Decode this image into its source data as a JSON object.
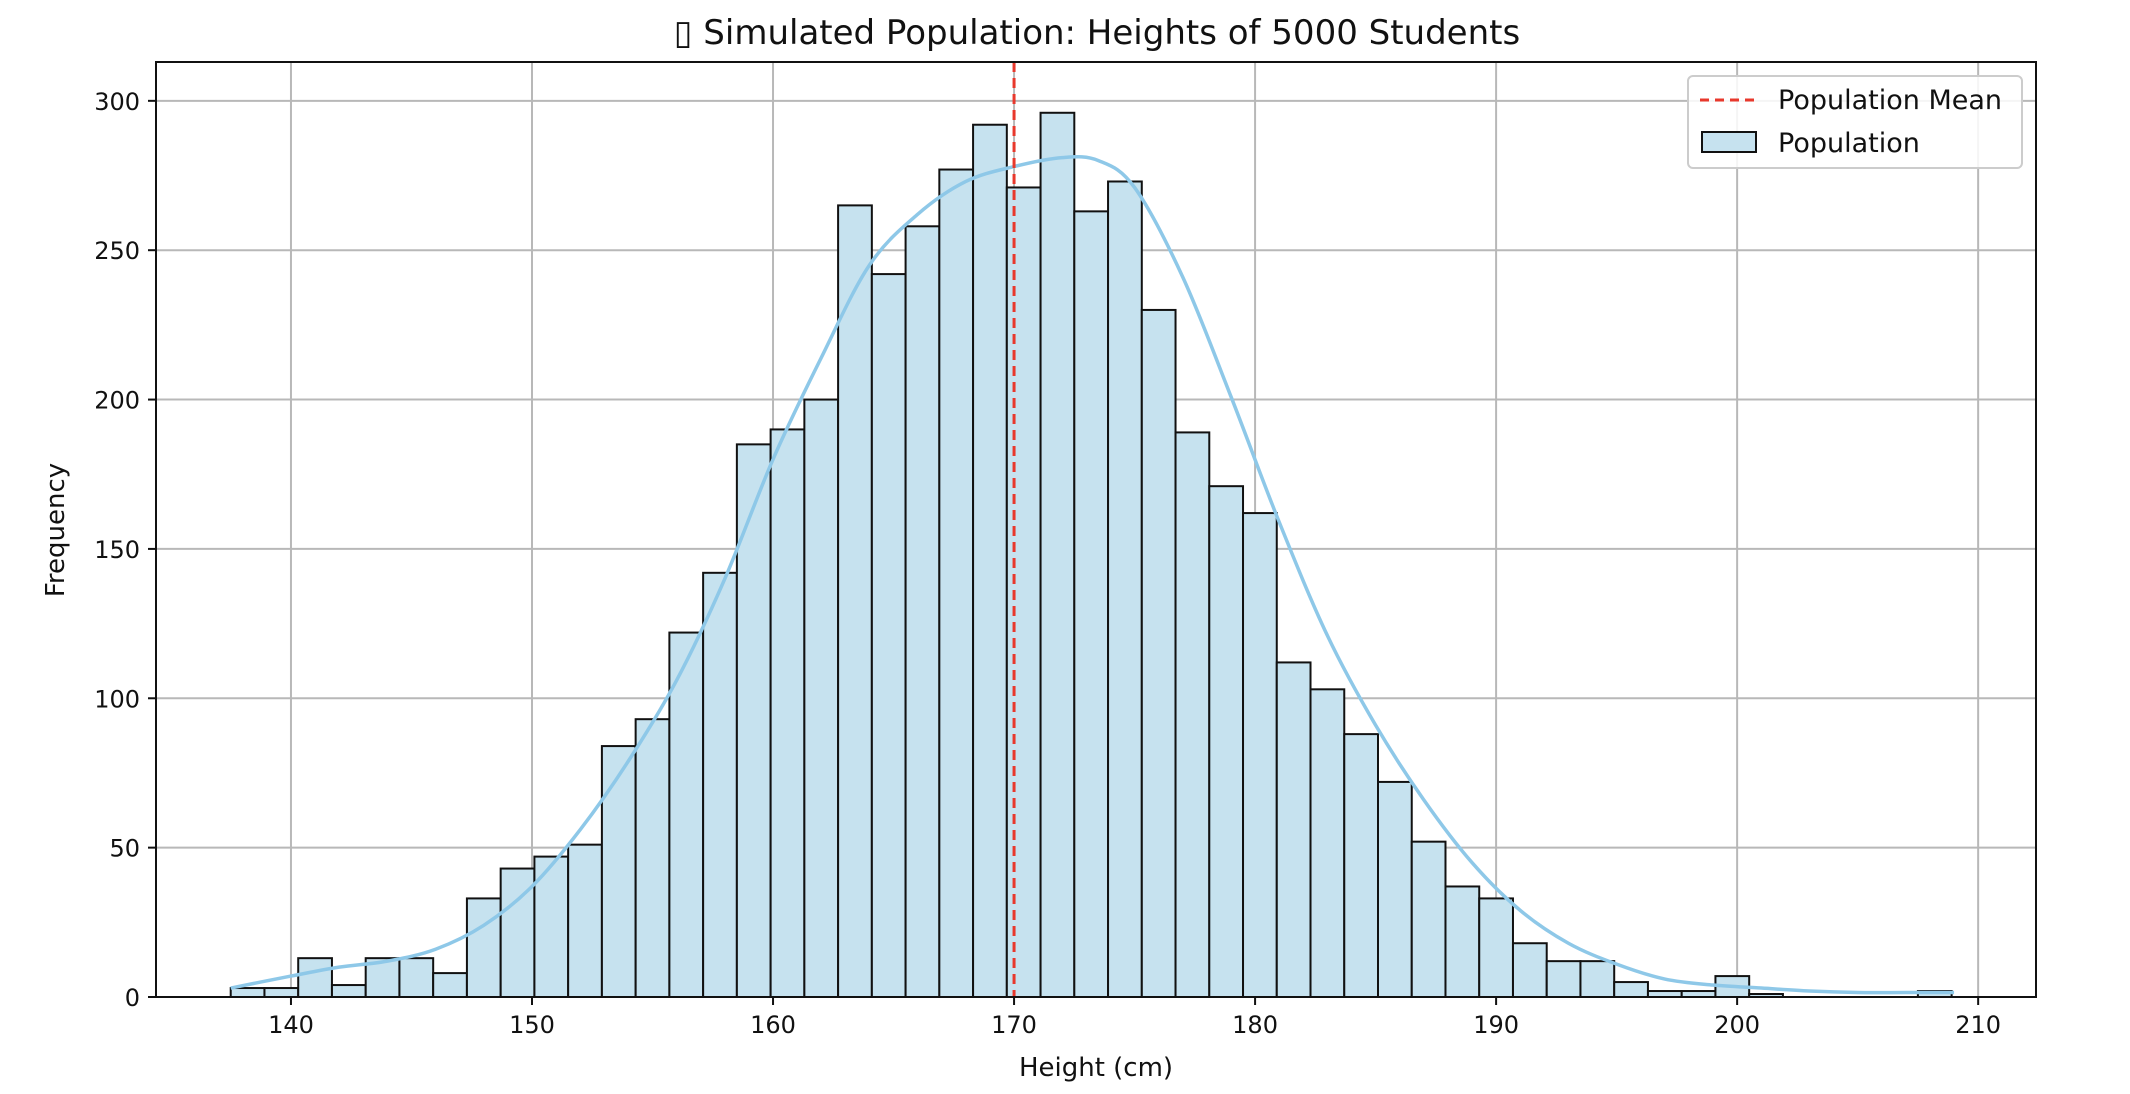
{
  "chart_data": {
    "type": "bar",
    "title": "▯ Simulated Population: Heights of 5000 Students",
    "xlabel": "Height (cm)",
    "ylabel": "Frequency",
    "xlim": [
      134.4,
      212.4
    ],
    "ylim": [
      0,
      313
    ],
    "xticks": [
      140,
      150,
      160,
      170,
      180,
      190,
      200,
      210
    ],
    "yticks": [
      0,
      50,
      100,
      150,
      200,
      250,
      300
    ],
    "grid": true,
    "legend": {
      "placement": "top-right",
      "entries": [
        "Population Mean",
        "Population"
      ]
    },
    "bin_start": 137.5,
    "bin_width": 1.4,
    "series": [
      {
        "name": "Population",
        "values": [
          3,
          3,
          13,
          4,
          13,
          13,
          8,
          33,
          43,
          47,
          51,
          84,
          93,
          122,
          142,
          185,
          190,
          200,
          265,
          242,
          258,
          277,
          292,
          271,
          296,
          263,
          273,
          230,
          189,
          171,
          162,
          112,
          103,
          88,
          72,
          52,
          37,
          33,
          18,
          12,
          12,
          5,
          2,
          2,
          7,
          1,
          0,
          0,
          0,
          0,
          2
        ]
      },
      {
        "name": "Population",
        "kind": "kde",
        "x": [
          137.5,
          140,
          142,
          144,
          146,
          148,
          150,
          152,
          154,
          156,
          158,
          160,
          162,
          164,
          166,
          168,
          170,
          172,
          173.5,
          175,
          177,
          179,
          181,
          183,
          185,
          187,
          189,
          191,
          193,
          195,
          197,
          199,
          201,
          203,
          205,
          207,
          209
        ],
        "values": [
          3,
          7,
          10,
          12,
          16,
          24,
          37,
          56,
          79,
          106,
          140,
          180,
          214,
          245,
          262,
          273,
          278,
          281,
          280,
          271,
          241,
          201,
          159,
          121,
          91,
          66,
          45,
          29,
          18,
          11,
          6,
          4,
          3,
          2,
          1.5,
          1.5,
          1.5
        ]
      }
    ],
    "mean": {
      "name": "Population Mean",
      "x": 170
    },
    "colors": {
      "bar_fill": "#c6e2ef",
      "bar_edge": "#111111",
      "kde_line": "#8ec8e8",
      "mean_line": "#e8382c",
      "grid": "#b8b8b8"
    }
  }
}
